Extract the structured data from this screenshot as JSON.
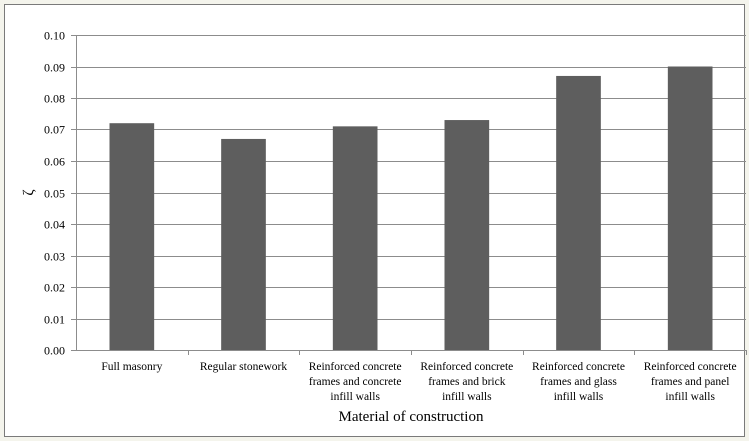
{
  "chart_data": {
    "type": "bar",
    "title": "",
    "xlabel": "Material of construction",
    "ylabel": "ζ",
    "ylim": [
      0,
      0.1
    ],
    "yticks": [
      "0.00",
      "0.01",
      "0.02",
      "0.03",
      "0.04",
      "0.05",
      "0.06",
      "0.07",
      "0.08",
      "0.09",
      "0.10"
    ],
    "grid": true,
    "legend": "none",
    "bar_color": "#5e5e5e",
    "categories": [
      [
        "Full masonry"
      ],
      [
        "Regular stonework"
      ],
      [
        "Reinforced concrete",
        "frames and concrete",
        "infill walls"
      ],
      [
        "Reinforced concrete",
        "frames and brick",
        "infill walls"
      ],
      [
        "Reinforced concrete",
        "frames and glass",
        "infill walls"
      ],
      [
        "Reinforced concrete",
        "frames and panel",
        "infill walls"
      ]
    ],
    "values": [
      0.072,
      0.067,
      0.071,
      0.073,
      0.087,
      0.09
    ]
  }
}
